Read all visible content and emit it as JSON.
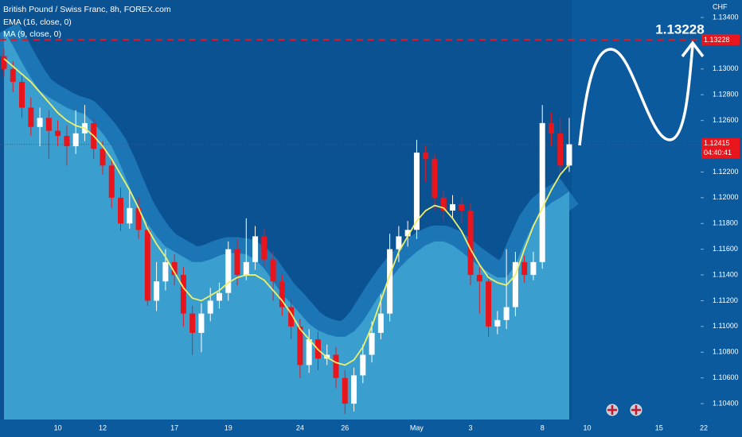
{
  "chart_data": {
    "type": "candlestick",
    "title": "British Pound / Swiss Franc, 8h, FOREX.com",
    "currency": "CHF",
    "categories": [
      null,
      null,
      null,
      null,
      null,
      null,
      "10",
      null,
      null,
      null,
      null,
      "12",
      null,
      null,
      null,
      null,
      null,
      null,
      null,
      "17",
      null,
      null,
      null,
      null,
      null,
      "19",
      null,
      null,
      null,
      null,
      null,
      null,
      null,
      "24",
      null,
      null,
      null,
      null,
      "26",
      null,
      null,
      null,
      null,
      null,
      null,
      null,
      "May",
      null,
      null,
      null,
      null,
      null,
      "3",
      null,
      null,
      null,
      null,
      null,
      null,
      null,
      "8",
      null,
      null,
      null,
      null,
      "10",
      null,
      null,
      null,
      null,
      null,
      null,
      null,
      "15",
      null,
      null,
      null,
      null,
      "22"
    ],
    "open": [
      1.131,
      1.13,
      1.129,
      1.127,
      1.1255,
      1.1262,
      1.1252,
      1.1248,
      1.124,
      1.125,
      1.1258,
      1.1238,
      1.1225,
      1.12,
      1.118,
      1.1192,
      1.1175,
      1.112,
      1.1135,
      1.115,
      1.114,
      1.111,
      1.1095,
      1.111,
      1.112,
      1.1126,
      1.116,
      1.114,
      1.115,
      1.117,
      1.1152,
      1.1135,
      1.1115,
      1.11,
      1.107,
      1.109,
      1.1075,
      1.1078,
      1.106,
      1.104,
      1.1062,
      1.1078,
      1.1095,
      1.111,
      1.116,
      1.117,
      1.1175,
      1.1235,
      1.123,
      1.12,
      1.119,
      1.1195,
      1.119,
      1.114,
      1.1135,
      1.11,
      1.1105,
      1.1115,
      1.115,
      1.114,
      1.115,
      1.1258,
      1.125,
      1.1225,
      null,
      null,
      null,
      null,
      null,
      null,
      null,
      null,
      null,
      null,
      null,
      null,
      null,
      null,
      null
    ],
    "high": [
      1.1316,
      1.1306,
      1.1296,
      1.1278,
      1.127,
      1.1268,
      1.126,
      1.1256,
      1.1268,
      1.1272,
      1.1262,
      1.1244,
      1.123,
      1.1208,
      1.1205,
      1.12,
      1.118,
      1.115,
      1.116,
      1.1156,
      1.1146,
      1.1116,
      1.1118,
      1.113,
      1.1134,
      1.1166,
      1.1168,
      1.1184,
      1.1178,
      1.1176,
      1.1158,
      1.114,
      1.1122,
      1.1106,
      1.1098,
      1.1096,
      1.1086,
      1.1084,
      1.1066,
      1.1068,
      1.1086,
      1.1104,
      1.1125,
      1.1172,
      1.1178,
      1.1182,
      1.1245,
      1.124,
      1.1234,
      1.1206,
      1.1202,
      1.12,
      1.1196,
      1.1146,
      1.114,
      1.1112,
      1.116,
      1.1158,
      1.1155,
      1.1158,
      1.1272,
      1.1266,
      1.1262,
      1.1262,
      null,
      null,
      null,
      null,
      null,
      null,
      null,
      null,
      null,
      null,
      null,
      null,
      null,
      null,
      null
    ],
    "low": [
      1.1294,
      1.1282,
      1.1262,
      1.1248,
      1.124,
      1.123,
      1.124,
      1.1225,
      1.1234,
      1.1244,
      1.123,
      1.1218,
      1.1192,
      1.1174,
      1.1176,
      1.1168,
      1.1116,
      1.1112,
      1.1128,
      1.1132,
      1.11,
      1.1078,
      1.108,
      1.1104,
      1.1114,
      1.112,
      1.1132,
      1.1136,
      1.1144,
      1.1146,
      1.112,
      1.1108,
      1.109,
      1.106,
      1.1064,
      1.1066,
      1.107,
      1.1052,
      1.1032,
      1.1034,
      1.1056,
      1.1072,
      1.109,
      1.1104,
      1.115,
      1.1162,
      1.1168,
      1.1212,
      1.119,
      1.1182,
      1.1184,
      1.118,
      1.1132,
      1.111,
      1.1092,
      1.1094,
      1.1098,
      1.1108,
      1.1134,
      1.1136,
      1.1145,
      1.124,
      1.1218,
      1.122,
      null,
      null,
      null,
      null,
      null,
      null,
      null,
      null,
      null,
      null,
      null,
      null,
      null,
      null,
      null
    ],
    "close": [
      1.13,
      1.129,
      1.127,
      1.1255,
      1.1262,
      1.1252,
      1.1248,
      1.124,
      1.125,
      1.1258,
      1.1238,
      1.1225,
      1.12,
      1.118,
      1.1192,
      1.1175,
      1.112,
      1.1135,
      1.115,
      1.114,
      1.111,
      1.1095,
      1.111,
      1.112,
      1.1126,
      1.116,
      1.114,
      1.115,
      1.117,
      1.1152,
      1.1135,
      1.1115,
      1.11,
      1.107,
      1.109,
      1.1075,
      1.1078,
      1.106,
      1.104,
      1.1062,
      1.1078,
      1.1095,
      1.111,
      1.116,
      1.117,
      1.1175,
      1.1235,
      1.123,
      1.12,
      1.119,
      1.1195,
      1.119,
      1.114,
      1.1135,
      1.11,
      1.1105,
      1.1115,
      1.115,
      1.114,
      1.115,
      1.1258,
      1.125,
      1.1225,
      1.12415,
      null,
      null,
      null,
      null,
      null,
      null,
      null,
      null,
      null,
      null,
      null,
      null,
      null,
      null,
      null
    ],
    "up_color": "#ffffff",
    "down_color": "#e8161c",
    "series": [
      {
        "name": "EMA (16, close, 0)",
        "color": "#eef06a",
        "values": [
          1.1308,
          1.1302,
          1.1296,
          1.129,
          1.1282,
          1.1274,
          1.1266,
          1.126,
          1.1256,
          1.1254,
          1.1248,
          1.124,
          1.123,
          1.1218,
          1.1206,
          1.1192,
          1.1176,
          1.1164,
          1.1154,
          1.1142,
          1.113,
          1.1122,
          1.112,
          1.1124,
          1.1128,
          1.1134,
          1.1138,
          1.114,
          1.114,
          1.1136,
          1.1128,
          1.112,
          1.111,
          1.1098,
          1.109,
          1.1082,
          1.1076,
          1.1072,
          1.107,
          1.1074,
          1.1084,
          1.11,
          1.112,
          1.114,
          1.1158,
          1.117,
          1.1182,
          1.119,
          1.1194,
          1.1192,
          1.1184,
          1.1174,
          1.116,
          1.1148,
          1.1138,
          1.1134,
          1.1132,
          1.114,
          1.116,
          1.1178,
          1.1192,
          1.1206,
          1.1218,
          1.1226,
          null,
          null,
          null,
          null,
          null,
          null,
          null,
          null,
          null,
          null,
          null,
          null,
          null,
          null,
          null
        ]
      },
      {
        "name": "MA (9, close, 0)",
        "color": "#3a9fcf",
        "values": [
          1.133,
          1.1318,
          1.1305,
          1.1293,
          1.1283,
          1.1278,
          1.1274,
          1.127,
          1.1267,
          1.1265,
          1.1258,
          1.125,
          1.124,
          1.1225,
          1.1208,
          1.1192,
          1.118,
          1.117,
          1.1162,
          1.1158,
          1.1154,
          1.115,
          1.115,
          1.1152,
          1.1155,
          1.1157,
          1.1157,
          1.1156,
          1.1152,
          1.1145,
          1.1135,
          1.1125,
          1.1118,
          1.111,
          1.1102,
          1.1097,
          1.1094,
          1.1092,
          1.1092,
          1.1096,
          1.1104,
          1.1115,
          1.1126,
          1.1136,
          1.1145,
          1.1152,
          1.1158,
          1.1163,
          1.1166,
          1.1166,
          1.1163,
          1.1158,
          1.1152,
          1.1147,
          1.1142,
          1.1138,
          1.1138,
          1.1148,
          1.1165,
          1.118,
          1.119,
          1.1196,
          1.12,
          1.1205,
          null,
          null,
          null,
          null,
          null,
          null,
          null,
          null,
          null,
          null,
          null,
          null,
          null,
          null,
          null
        ]
      }
    ],
    "ylim": [
      1.10277,
      1.13536
    ],
    "yticks": [
      {
        "value": 1.134,
        "label": "1.13400"
      },
      {
        "value": 1.13,
        "label": "1.13000"
      },
      {
        "value": 1.128,
        "label": "1.12800"
      },
      {
        "value": 1.126,
        "label": "1.12600"
      },
      {
        "value": 1.122,
        "label": "1.12200"
      },
      {
        "value": 1.12,
        "label": "1.12000"
      },
      {
        "value": 1.118,
        "label": "1.11800"
      },
      {
        "value": 1.116,
        "label": "1.11600"
      },
      {
        "value": 1.114,
        "label": "1.11400"
      },
      {
        "value": 1.112,
        "label": "1.11200"
      },
      {
        "value": 1.11,
        "label": "1.11000"
      },
      {
        "value": 1.108,
        "label": "1.10800"
      },
      {
        "value": 1.106,
        "label": "1.10600"
      },
      {
        "value": 1.104,
        "label": "1.10400"
      }
    ],
    "target": 1.13228,
    "target_color": "#e8161c",
    "last_price": 1.12415,
    "countdown": "04:40:41"
  }
}
